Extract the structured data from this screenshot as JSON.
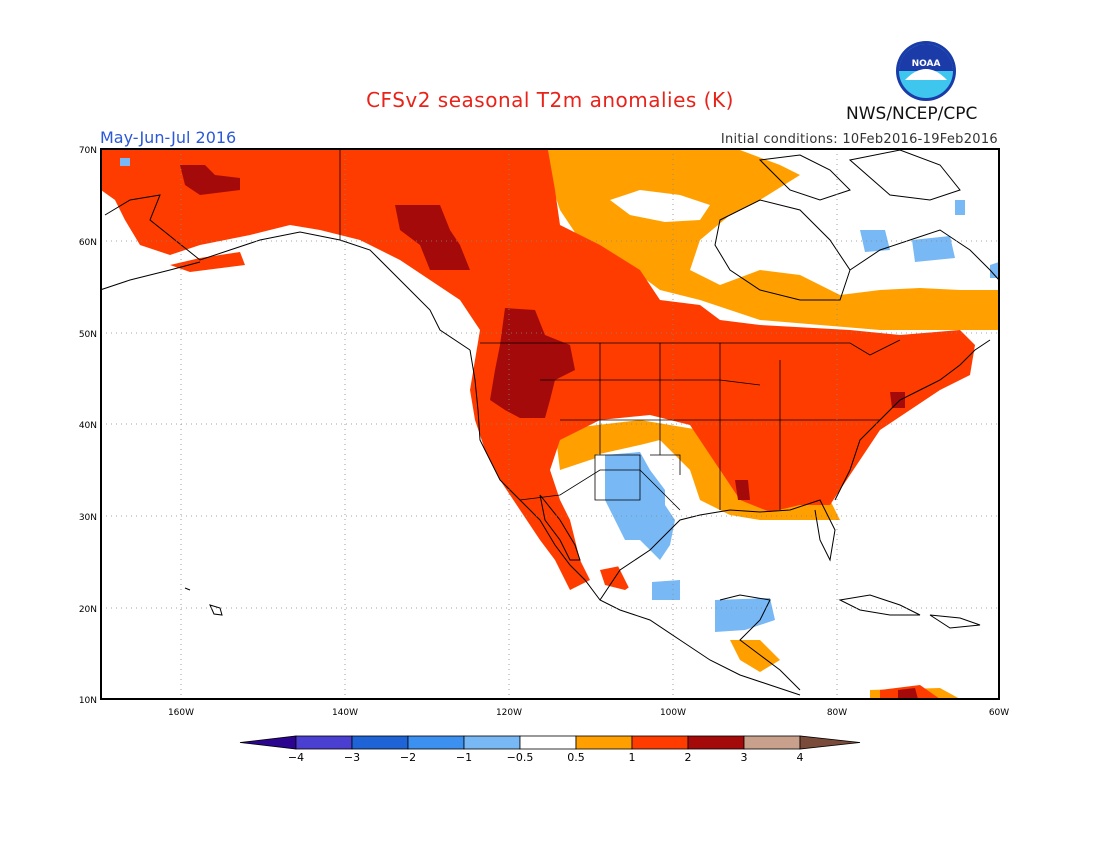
{
  "title": "CFSv2 seasonal T2m anomalies (K)",
  "period": "May-Jun-Jul 2016",
  "initial_conditions": "Initial conditions: 10Feb2016-19Feb2016",
  "agency": "NWS/NCEP/CPC",
  "logo_text": "NOAA",
  "map": {
    "lon_range": [
      -172,
      -60
    ],
    "lat_range": [
      10,
      70
    ],
    "lon_ticks": [
      "160W",
      "140W",
      "120W",
      "100W",
      "80W",
      "60W"
    ],
    "lat_ticks": [
      "10N",
      "20N",
      "30N",
      "40N",
      "50N",
      "60N",
      "70N"
    ],
    "grid": "dotted"
  },
  "legend": {
    "labels": [
      "-4",
      "-3",
      "-2",
      "-1",
      "-0.5",
      "0.5",
      "1",
      "2",
      "3",
      "4"
    ],
    "colors": [
      "#2b0590",
      "#4a3fd0",
      "#1e64d6",
      "#3c91f0",
      "#78b8f5",
      "#ffffff",
      "#ffa000",
      "#ff3c00",
      "#a50a0a",
      "#c8a08c",
      "#7a4a3a"
    ]
  },
  "colors": {
    "anomaly_05_1": "#ffa000",
    "anomaly_1_2": "#ff3c00",
    "anomaly_2_3": "#a50a0a",
    "anomaly_neg": "#78b8f5",
    "title": "#e8231a",
    "period": "#2a58d8"
  }
}
